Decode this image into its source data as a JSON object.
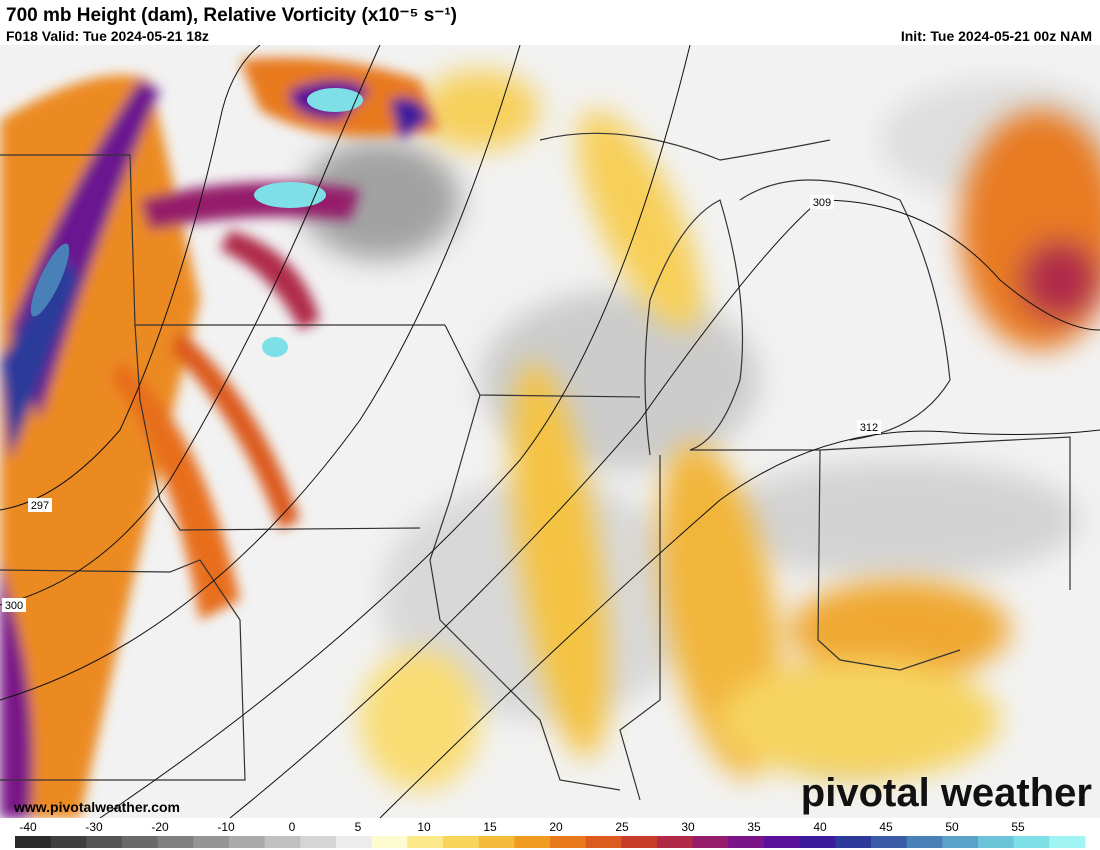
{
  "header": {
    "title": "700 mb Height (dam), Relative Vorticity (x10⁻⁵ s⁻¹)",
    "valid": "F018 Valid: Tue 2024-05-21 18z",
    "init": "Init: Tue 2024-05-21 00z NAM"
  },
  "contours": [
    {
      "label": "297"
    },
    {
      "label": "300"
    },
    {
      "label": "309"
    },
    {
      "label": "312"
    }
  ],
  "footer": {
    "website": "www.pivotalweather.com",
    "logo": "pivotal weather"
  },
  "colorbar": {
    "ticks": [
      "-40",
      "-30",
      "-20",
      "-10",
      "0",
      "5",
      "10",
      "15",
      "20",
      "25",
      "30",
      "35",
      "40",
      "45",
      "50",
      "55"
    ],
    "colors": [
      "#2a2a2a",
      "#3f3f3f",
      "#555",
      "#6a6a6a",
      "#808080",
      "#959595",
      "#aaa",
      "#c0c0c0",
      "#d5d5d5",
      "#ececec",
      "#fdfbd0",
      "#fbe98a",
      "#f9d45a",
      "#f5bb3a",
      "#f09c22",
      "#e8791c",
      "#dc5a1e",
      "#c83c2a",
      "#b02a48",
      "#951c6a",
      "#7a1488",
      "#5a109a",
      "#3c1a9c",
      "#2c3a9a",
      "#3a5ca8",
      "#4a80b8",
      "#5aa2c8",
      "#6cc4d8",
      "#7ee0e6",
      "#a0f4f4"
    ]
  }
}
